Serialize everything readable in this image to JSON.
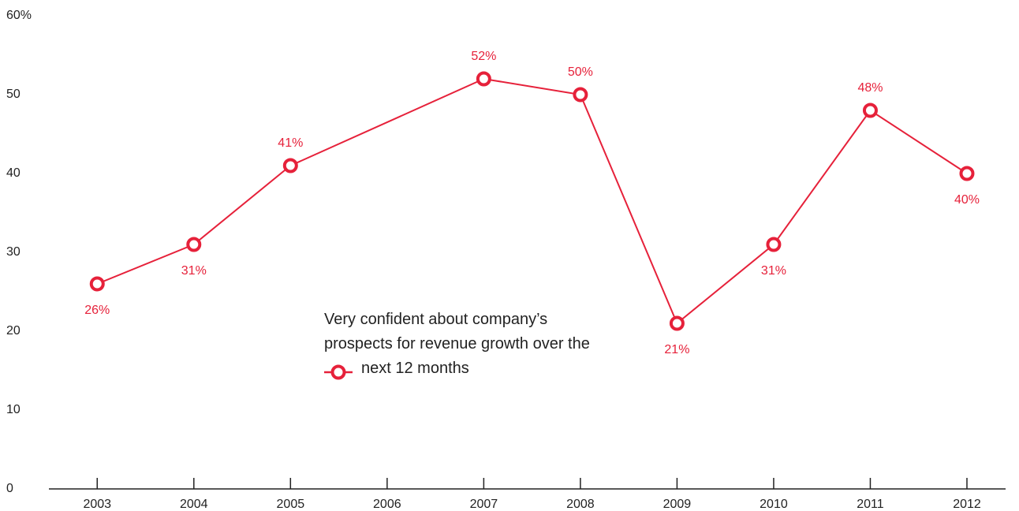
{
  "chart_data": {
    "type": "line",
    "x": [
      2003,
      2004,
      2005,
      2007,
      2008,
      2009,
      2010,
      2011,
      2012
    ],
    "series": [
      {
        "name": "Very confident about company’s prospects for revenue growth over the next 12 months",
        "color": "#e6213a",
        "values": [
          26,
          31,
          41,
          52,
          50,
          21,
          31,
          48,
          40
        ],
        "value_labels": [
          "26%",
          "31%",
          "41%",
          "52%",
          "50%",
          "21%",
          "31%",
          "48%",
          "40%"
        ]
      }
    ],
    "xlim": [
      2002.5,
      2012.4
    ],
    "xticks": [
      2003,
      2004,
      2005,
      2006,
      2007,
      2008,
      2009,
      2010,
      2011,
      2012
    ],
    "ylim": [
      0,
      60
    ],
    "yticks": [
      0,
      10,
      20,
      30,
      40,
      50,
      {
        "value": 60,
        "label": "60%"
      }
    ]
  }
}
